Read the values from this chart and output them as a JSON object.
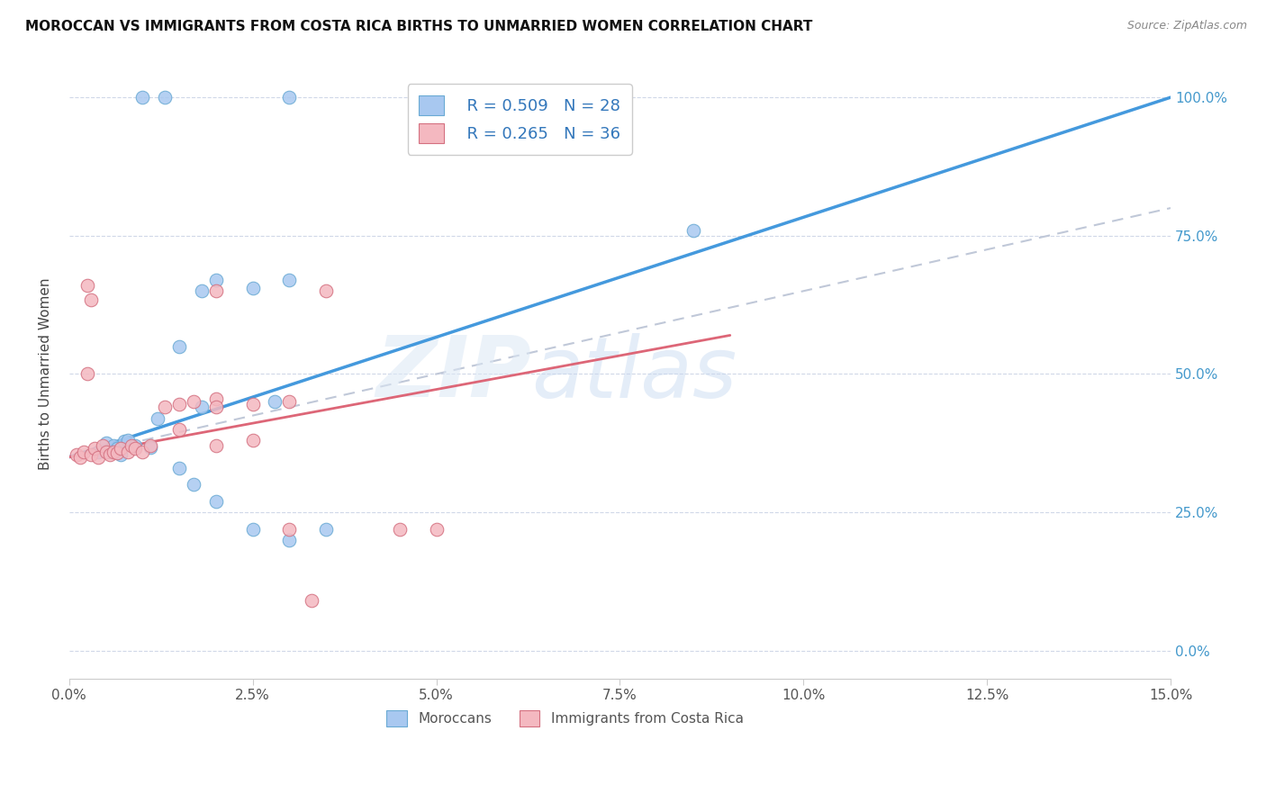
{
  "title": "MOROCCAN VS IMMIGRANTS FROM COSTA RICA BIRTHS TO UNMARRIED WOMEN CORRELATION CHART",
  "source": "Source: ZipAtlas.com",
  "ylabel": "Births to Unmarried Women",
  "legend_blue_r": "R = 0.509",
  "legend_blue_n": "N = 28",
  "legend_pink_r": "R = 0.265",
  "legend_pink_n": "N = 36",
  "legend_label_blue": "Moroccans",
  "legend_label_pink": "Immigrants from Costa Rica",
  "watermark_zip": "ZIP",
  "watermark_atlas": "atlas",
  "blue_color": "#a8c8f0",
  "blue_edge_color": "#6aaad4",
  "pink_color": "#f4b8c0",
  "pink_edge_color": "#d47080",
  "blue_line_color": "#4499dd",
  "pink_line_color": "#dd6677",
  "dashed_line_color": "#c0c8d8",
  "blue_scatter": [
    [
      0.4,
      36.0
    ],
    [
      0.7,
      35.5
    ],
    [
      1.0,
      100.0
    ],
    [
      1.3,
      100.0
    ],
    [
      3.0,
      100.0
    ],
    [
      0.5,
      37.5
    ],
    [
      0.55,
      36.0
    ],
    [
      0.6,
      37.0
    ],
    [
      0.65,
      36.5
    ],
    [
      0.75,
      37.8
    ],
    [
      0.8,
      38.0
    ],
    [
      0.9,
      37.0
    ],
    [
      1.1,
      36.8
    ],
    [
      1.5,
      55.0
    ],
    [
      1.8,
      65.0
    ],
    [
      2.0,
      67.0
    ],
    [
      2.5,
      65.5
    ],
    [
      3.0,
      67.0
    ],
    [
      1.5,
      33.0
    ],
    [
      1.7,
      30.0
    ],
    [
      2.0,
      27.0
    ],
    [
      2.5,
      22.0
    ],
    [
      3.0,
      20.0
    ],
    [
      3.5,
      22.0
    ],
    [
      8.5,
      76.0
    ],
    [
      1.2,
      42.0
    ],
    [
      1.8,
      44.0
    ],
    [
      2.8,
      45.0
    ]
  ],
  "pink_scatter": [
    [
      0.1,
      35.5
    ],
    [
      0.15,
      35.0
    ],
    [
      0.2,
      36.0
    ],
    [
      0.3,
      35.5
    ],
    [
      0.35,
      36.5
    ],
    [
      0.4,
      35.0
    ],
    [
      0.45,
      37.0
    ],
    [
      0.5,
      36.0
    ],
    [
      0.55,
      35.5
    ],
    [
      0.6,
      36.0
    ],
    [
      0.65,
      35.8
    ],
    [
      0.7,
      36.5
    ],
    [
      0.8,
      36.0
    ],
    [
      0.85,
      37.0
    ],
    [
      0.9,
      36.5
    ],
    [
      1.0,
      36.0
    ],
    [
      1.1,
      37.0
    ],
    [
      0.25,
      66.0
    ],
    [
      0.3,
      63.5
    ],
    [
      0.25,
      50.0
    ],
    [
      1.3,
      44.0
    ],
    [
      1.5,
      44.5
    ],
    [
      1.7,
      45.0
    ],
    [
      2.0,
      45.5
    ],
    [
      2.0,
      44.0
    ],
    [
      2.5,
      44.5
    ],
    [
      3.0,
      45.0
    ],
    [
      3.5,
      65.0
    ],
    [
      2.0,
      65.0
    ],
    [
      1.5,
      40.0
    ],
    [
      2.0,
      37.0
    ],
    [
      2.5,
      38.0
    ],
    [
      4.5,
      22.0
    ],
    [
      3.0,
      22.0
    ],
    [
      5.0,
      22.0
    ],
    [
      3.3,
      9.0
    ]
  ],
  "xlim": [
    0,
    15
  ],
  "ylim": [
    -5,
    105
  ],
  "y_display_min": 0,
  "y_display_max": 100,
  "xaxis_pct_ticks": [
    0,
    2.5,
    5.0,
    7.5,
    10.0,
    12.5,
    15.0
  ],
  "yaxis_pct_ticks": [
    0,
    25,
    50,
    75,
    100
  ],
  "blue_line_x0": 0.0,
  "blue_line_y0": 35.0,
  "blue_line_x1": 15.0,
  "blue_line_y1": 100.0,
  "pink_solid_x0": 0.0,
  "pink_solid_y0": 35.0,
  "pink_solid_x1": 9.0,
  "pink_solid_y1": 57.0,
  "pink_dash_x0": 0.0,
  "pink_dash_y0": 35.0,
  "pink_dash_x1": 15.0,
  "pink_dash_y1": 80.0
}
